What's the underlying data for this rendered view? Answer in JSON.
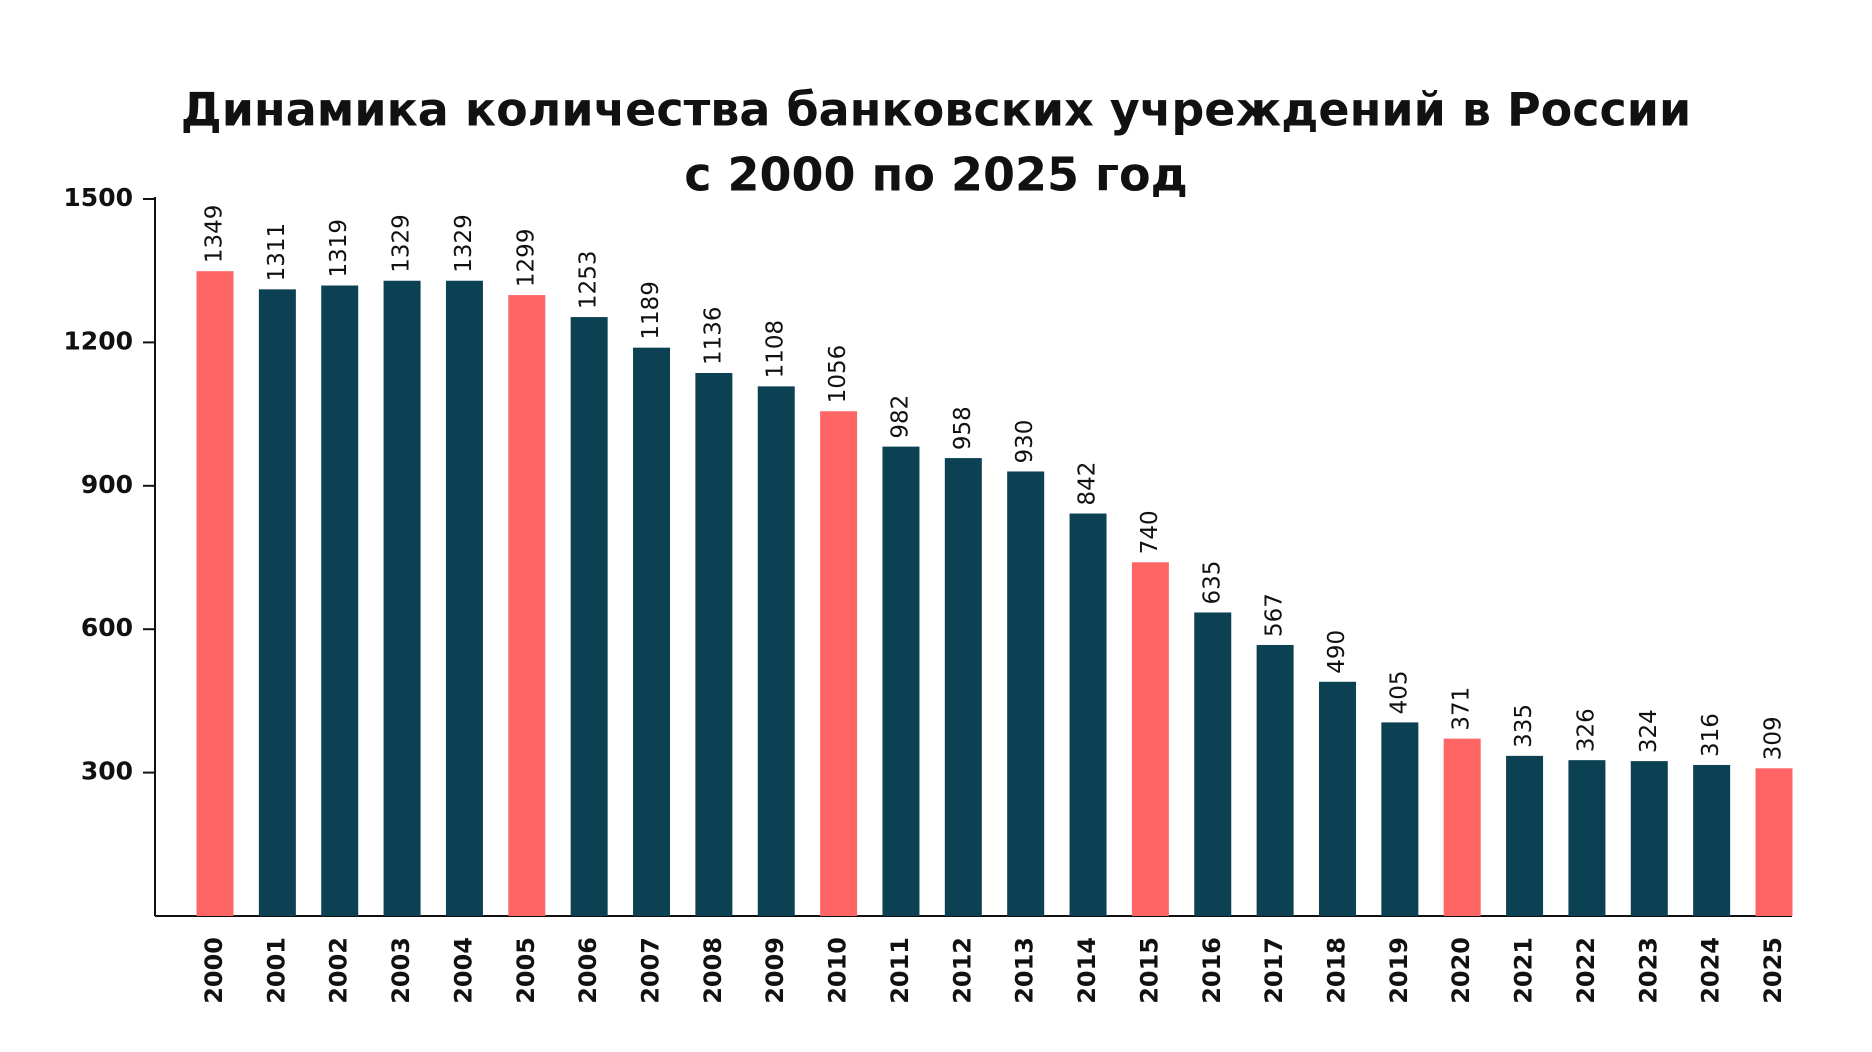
{
  "chart_data": {
    "type": "bar",
    "title": [
      "Динамика количества банковских учреждений в России",
      "с 2000 по 2025 год"
    ],
    "categories": [
      "2000",
      "2001",
      "2002",
      "2003",
      "2004",
      "2005",
      "2006",
      "2007",
      "2008",
      "2009",
      "2010",
      "2011",
      "2012",
      "2013",
      "2014",
      "2015",
      "2016",
      "2017",
      "2018",
      "2019",
      "2020",
      "2021",
      "2022",
      "2023",
      "2024",
      "2025"
    ],
    "values": [
      1349,
      1311,
      1319,
      1329,
      1329,
      1299,
      1253,
      1189,
      1136,
      1108,
      1056,
      982,
      958,
      930,
      842,
      740,
      635,
      567,
      490,
      405,
      371,
      335,
      326,
      324,
      316,
      309
    ],
    "colors": [
      "#ff6565",
      "#0b4152",
      "#0b4152",
      "#0b4152",
      "#0b4152",
      "#ff6565",
      "#0b4152",
      "#0b4152",
      "#0b4152",
      "#0b4152",
      "#ff6565",
      "#0b4152",
      "#0b4152",
      "#0b4152",
      "#0b4152",
      "#ff6565",
      "#0b4152",
      "#0b4152",
      "#0b4152",
      "#0b4152",
      "#ff6565",
      "#0b4152",
      "#0b4152",
      "#0b4152",
      "#0b4152",
      "#ff6565"
    ],
    "ylim": [
      0,
      1500
    ],
    "yticks": [
      300,
      600,
      900,
      1200,
      1500
    ],
    "grid": false
  }
}
